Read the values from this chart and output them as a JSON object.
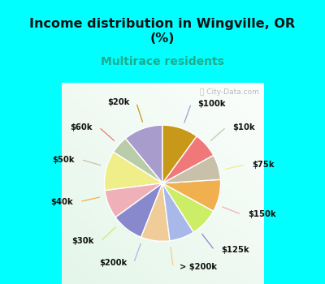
{
  "title": "Income distribution in Wingville, OR\n(%)",
  "subtitle": "Multirace residents",
  "title_color": "#111111",
  "subtitle_color": "#22aa88",
  "bg_cyan": "#00FFFF",
  "bg_chart": "#e8f5f0",
  "labels": [
    "$100k",
    "$10k",
    "$75k",
    "$150k",
    "$125k",
    "> $200k",
    "$200k",
    "$30k",
    "$40k",
    "$50k",
    "$60k",
    "$20k"
  ],
  "values": [
    11,
    5,
    11,
    8,
    9,
    8,
    7,
    8,
    9,
    7,
    7,
    10
  ],
  "colors": [
    "#a89ccc",
    "#b8ccaa",
    "#f0ee88",
    "#f0b0b8",
    "#8888cc",
    "#f0cc98",
    "#a8b8e8",
    "#ccee66",
    "#f0b050",
    "#c8c0a8",
    "#f07878",
    "#c89818"
  ],
  "startangle": 90
}
